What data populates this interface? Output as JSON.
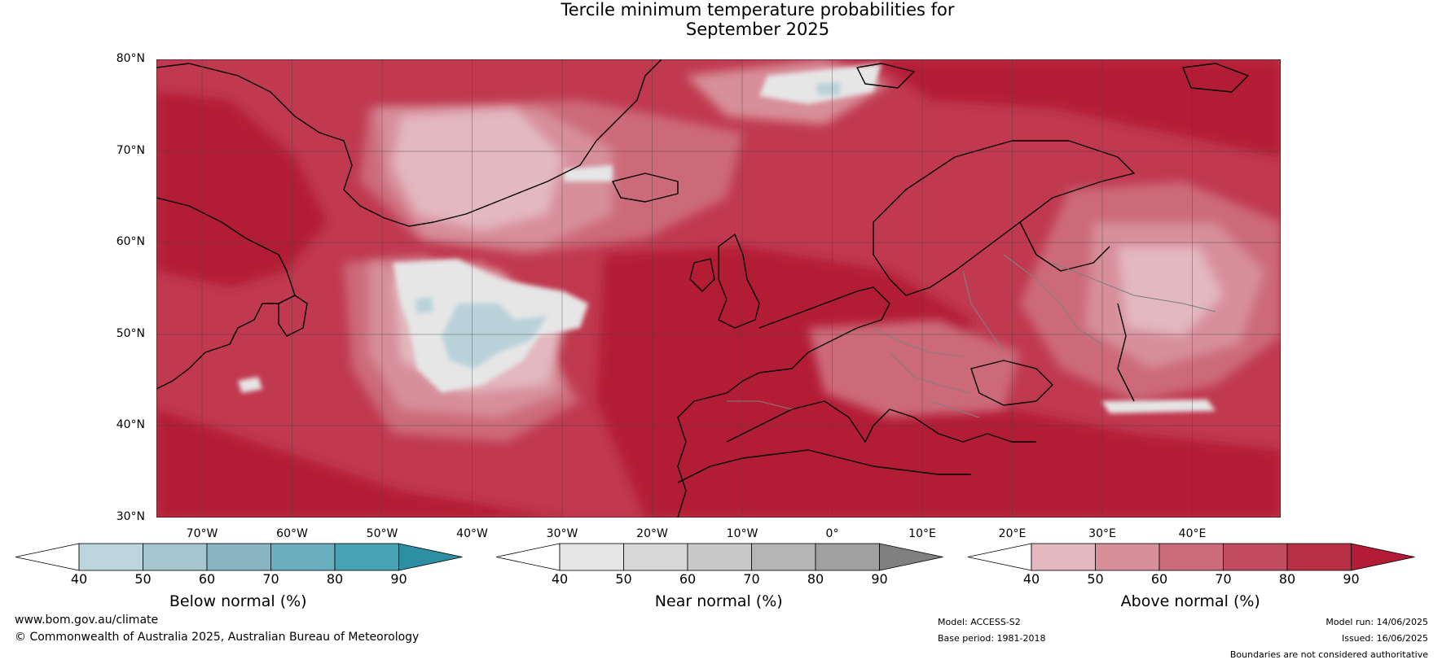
{
  "title": {
    "line1": "Tercile minimum temperature probabilities for",
    "line2": "September 2025"
  },
  "map": {
    "lat_labels": [
      "80°N",
      "70°N",
      "60°N",
      "50°N",
      "40°N",
      "30°N"
    ],
    "lon_labels": [
      "70°W",
      "60°W",
      "50°W",
      "40°W",
      "30°W",
      "20°W",
      "10°W",
      "0°",
      "10°E",
      "20°E",
      "30°E",
      "40°E"
    ],
    "ocean_color": "#c0394f",
    "colors": {
      "above_90": "#b31b36",
      "above_80": "#c0394f",
      "above_70": "#cc6b7a",
      "above_60": "#d78f9a",
      "above_50": "#e3b8bf",
      "near_40": "#e6e6e6",
      "below_50": "#b9d2da",
      "coast": "#000000",
      "border": "#808080"
    }
  },
  "colorbars": [
    {
      "id": "below",
      "label": "Below normal (%)",
      "ticks": [
        "40",
        "50",
        "60",
        "70",
        "80",
        "90"
      ],
      "colors": [
        "#ffffff",
        "#bdd5dc",
        "#a6c6cf",
        "#89b5c3",
        "#6baebf",
        "#47a3b4",
        "#2e8fa3"
      ]
    },
    {
      "id": "near",
      "label": "Near normal (%)",
      "ticks": [
        "40",
        "50",
        "60",
        "70",
        "80",
        "90"
      ],
      "colors": [
        "#ffffff",
        "#e6e6e6",
        "#d7d7d7",
        "#c8c8c8",
        "#b5b5b5",
        "#a0a0a0",
        "#808080"
      ]
    },
    {
      "id": "above",
      "label": "Above normal (%)",
      "ticks": [
        "40",
        "50",
        "60",
        "70",
        "80",
        "90"
      ],
      "colors": [
        "#ffffff",
        "#e3b8bf",
        "#d78f9a",
        "#cc6b7a",
        "#c24c5f",
        "#b82e45",
        "#b31b36"
      ]
    }
  ],
  "footer": {
    "website": "www.bom.gov.au/climate",
    "copyright": "© Commonwealth of Australia 2025, Australian Bureau of Meteorology",
    "model": "Model: ACCESS-S2",
    "base_period": "Base period: 1981-2018",
    "model_run": "Model run: 14/06/2025",
    "issued": "Issued: 16/06/2025",
    "disclaimer": "Boundaries are not considered authoritative"
  }
}
